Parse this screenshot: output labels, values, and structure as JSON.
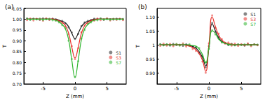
{
  "chart_data": [
    {
      "type": "scatter",
      "title": "(a)",
      "x_label": "Z (mm)",
      "y_label": "T",
      "x": [
        -7.5,
        -7,
        -6.5,
        -6,
        -5.5,
        -5,
        -4.5,
        -4,
        -3.5,
        -3,
        -2.5,
        -2,
        -1.5,
        -1,
        -0.5,
        0,
        0.5,
        1,
        1.5,
        2,
        2.5,
        3,
        3.5,
        4,
        4.5,
        5,
        5.5,
        6,
        6.5,
        7,
        7.5
      ],
      "xlim": [
        -8,
        8
      ],
      "xticks": [
        -5,
        0,
        5
      ],
      "ylim": [
        0.7,
        1.05
      ],
      "yticks": [
        {
          "value": 0.7,
          "label": "0.70"
        },
        0.75,
        {
          "value": 0.8,
          "label": "0.80"
        },
        0.85,
        {
          "value": 0.9,
          "label": "0.90"
        },
        0.95,
        {
          "value": 1,
          "label": "1.00"
        },
        1.05
      ],
      "grid": false,
      "legend": "right",
      "marker": "circle",
      "line_style": "solid",
      "series": [
        {
          "name": "S1",
          "color": "#222222",
          "values": [
            1.003,
            0.998,
            1.002,
            1.0,
            0.997,
            1.004,
            1.001,
            0.998,
            1.002,
            0.999,
            0.993,
            0.992,
            0.98,
            0.962,
            0.938,
            0.908,
            0.932,
            0.968,
            0.985,
            0.992,
            0.996,
            1.002,
            0.999,
            1.003,
            0.997,
            1.001,
            1.0,
            0.998,
            1.002,
            1.0,
            0.999
          ],
          "fit": [
            1,
            1,
            1,
            1,
            1,
            1,
            1,
            1,
            1,
            1,
            0.995,
            0.99,
            0.983,
            0.965,
            0.935,
            0.91,
            0.935,
            0.965,
            0.983,
            0.99,
            0.995,
            1,
            1,
            1,
            1,
            1,
            1,
            1,
            1,
            1,
            1
          ]
        },
        {
          "name": "S3",
          "color": "#e8302a",
          "values": [
            0.996,
            1.003,
            0.994,
            1.002,
            0.998,
            0.993,
            1.004,
            0.997,
            1.001,
            0.995,
            0.99,
            0.982,
            0.966,
            0.93,
            0.875,
            0.815,
            0.866,
            0.94,
            0.972,
            0.98,
            0.995,
            0.993,
            1.003,
            0.996,
            0.999,
            1.004,
            0.994,
            1.0,
            0.997,
            1.002,
            0.996
          ],
          "fit": [
            1,
            1,
            1,
            1,
            1,
            1,
            1,
            1,
            1,
            0.998,
            0.992,
            0.985,
            0.97,
            0.935,
            0.87,
            0.82,
            0.87,
            0.935,
            0.97,
            0.985,
            0.992,
            0.998,
            1,
            1,
            1,
            1,
            1,
            1,
            1,
            1,
            1
          ]
        },
        {
          "name": "S7",
          "color": "#2db52d",
          "values": [
            1.002,
            0.997,
            1.001,
            0.999,
            1.003,
            0.996,
            1.0,
            1.002,
            0.995,
            0.993,
            0.985,
            0.972,
            0.958,
            0.9,
            0.815,
            0.732,
            0.805,
            0.91,
            0.95,
            0.978,
            0.985,
            0.997,
            0.995,
            1.003,
            0.998,
            1.001,
            0.997,
            1.002,
            0.999,
            1.0,
            1.001
          ],
          "fit": [
            1,
            1,
            1,
            1,
            1,
            1,
            1,
            1,
            0.998,
            0.995,
            0.988,
            0.975,
            0.955,
            0.905,
            0.81,
            0.73,
            0.81,
            0.905,
            0.955,
            0.975,
            0.988,
            0.995,
            0.998,
            1,
            1,
            1,
            1,
            1,
            1,
            1,
            1
          ]
        }
      ]
    },
    {
      "type": "scatter",
      "title": "(b)",
      "x_label": "Z (mm)",
      "y_label": "T",
      "x": [
        -7.5,
        -7,
        -6.5,
        -6,
        -5.5,
        -5,
        -4.5,
        -4,
        -3.5,
        -3,
        -2.5,
        -2,
        -1.5,
        -1,
        -0.5,
        0,
        0.5,
        1,
        1.5,
        2,
        2.5,
        3,
        3.5,
        4,
        4.5,
        5,
        5.5,
        6,
        6.5,
        7,
        7.5
      ],
      "xlim": [
        -8,
        8
      ],
      "xticks": [
        -5,
        0,
        5
      ],
      "ylim": [
        0.86,
        1.13
      ],
      "yticks": [
        {
          "value": 0.9,
          "label": "0.90"
        },
        0.95,
        1,
        1.05,
        {
          "value": 1.1,
          "label": "1.10"
        }
      ],
      "grid": false,
      "legend": "upper right",
      "marker": "circle",
      "line_style": "solid",
      "series": [
        {
          "name": "S1",
          "color": "#222222",
          "values": [
            1.002,
            0.998,
            1.001,
            0.997,
            1.003,
            0.999,
            1.0,
            0.996,
            1.002,
            0.997,
            0.992,
            0.99,
            0.97,
            0.958,
            0.92,
            0.995,
            1.078,
            1.046,
            1.028,
            1.01,
            1.007,
            0.999,
            1.003,
            0.998,
            1.001,
            1.0,
            0.997,
            1.002,
            0.999,
            1.001,
            1.0
          ],
          "fit": [
            1,
            1,
            1,
            1,
            1,
            1,
            1,
            1,
            1,
            0.998,
            0.994,
            0.988,
            0.975,
            0.955,
            0.925,
            0.99,
            1.075,
            1.05,
            1.025,
            1.012,
            1.005,
            1.002,
            1,
            1,
            1,
            1,
            1,
            1,
            1,
            1,
            1
          ]
        },
        {
          "name": "S3",
          "color": "#e8302a",
          "values": [
            0.996,
            1.004,
            0.997,
            1.003,
            0.995,
            1.002,
            0.998,
            1.005,
            0.994,
            0.998,
            0.985,
            0.978,
            0.972,
            0.94,
            0.9,
            1.005,
            1.105,
            1.06,
            1.04,
            1.02,
            1.004,
            1.008,
            0.997,
            1.004,
            0.996,
            1.002,
            0.998,
            1.005,
            0.995,
            1.001,
            0.998
          ],
          "fit": [
            1,
            1,
            1,
            1,
            1,
            1,
            1,
            1,
            0.998,
            0.995,
            0.99,
            0.982,
            0.968,
            0.945,
            0.905,
            1.0,
            1.1,
            1.065,
            1.035,
            1.017,
            1.008,
            1.004,
            1.002,
            1,
            1,
            1,
            1,
            1,
            1,
            1,
            1
          ]
        },
        {
          "name": "S7",
          "color": "#2db52d",
          "values": [
            1.001,
            0.998,
            1.002,
            0.999,
            1.0,
            1.003,
            0.997,
            1.001,
            0.999,
            1.002,
            0.995,
            0.993,
            0.988,
            0.962,
            0.938,
            0.985,
            1.052,
            1.037,
            1.022,
            1.008,
            1.006,
            1.0,
            1.002,
            0.998,
            1.001,
            0.999,
            1.002,
            1.0,
            0.998,
            1.001,
            1.0
          ],
          "fit": [
            1,
            1,
            1,
            1,
            1,
            1,
            1,
            1,
            1,
            0.999,
            0.997,
            0.995,
            0.985,
            0.965,
            0.935,
            0.99,
            1.05,
            1.04,
            1.02,
            1.01,
            1.005,
            1.002,
            1,
            1,
            1,
            1,
            1,
            1,
            1,
            1,
            1
          ]
        }
      ]
    }
  ]
}
